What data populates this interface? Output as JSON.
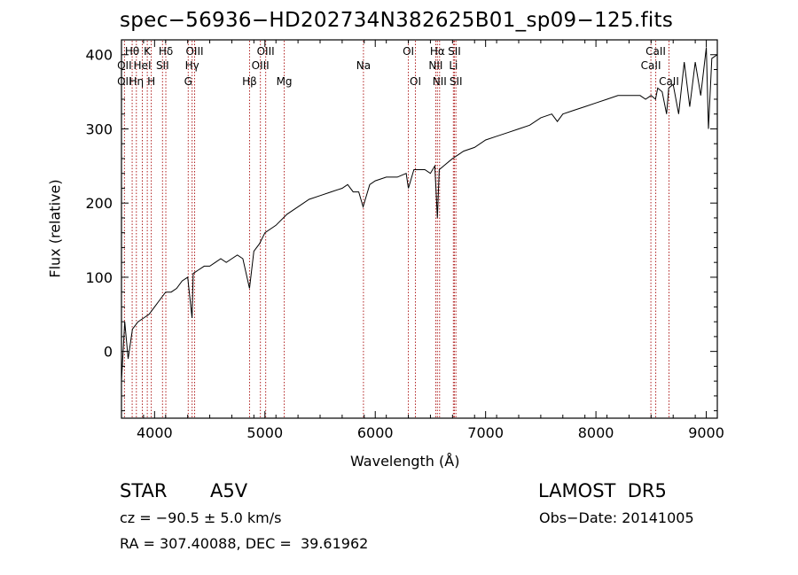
{
  "chart_data": {
    "type": "line",
    "title": "spec−56936−HD202734N382625B01_sp09−125.fits",
    "xlabel": "Wavelength (Å)",
    "ylabel": "Flux (relative)",
    "xlim": [
      3700,
      9100
    ],
    "ylim": [
      -90,
      420
    ],
    "xticks": [
      4000,
      5000,
      6000,
      7000,
      8000,
      9000
    ],
    "yticks": [
      0,
      100,
      200,
      300,
      400
    ],
    "series": [
      {
        "x": [
          3700,
          3730,
          3760,
          3800,
          3850,
          3900,
          3950,
          4000,
          4050,
          4100,
          4150,
          4200,
          4250,
          4300,
          4340,
          4350,
          4400,
          4450,
          4500,
          4550,
          4600,
          4650,
          4700,
          4750,
          4800,
          4860,
          4900,
          4950,
          5000,
          5100,
          5200,
          5300,
          5400,
          5500,
          5600,
          5700,
          5750,
          5800,
          5850,
          5890,
          5950,
          6000,
          6100,
          6200,
          6280,
          6300,
          6350,
          6400,
          6450,
          6500,
          6540,
          6563,
          6580,
          6620,
          6700,
          6750,
          6800,
          6900,
          7000,
          7100,
          7200,
          7300,
          7400,
          7500,
          7600,
          7650,
          7700,
          7800,
          7900,
          8000,
          8100,
          8200,
          8300,
          8400,
          8450,
          8500,
          8540,
          8560,
          8600,
          8640,
          8660,
          8700,
          8750,
          8800,
          8850,
          8900,
          8950,
          9000,
          9020,
          9050,
          9100
        ],
        "y": [
          -40,
          40,
          -10,
          30,
          40,
          45,
          50,
          60,
          70,
          80,
          80,
          85,
          95,
          100,
          45,
          105,
          110,
          115,
          115,
          120,
          125,
          120,
          125,
          130,
          125,
          85,
          135,
          145,
          160,
          170,
          185,
          195,
          205,
          210,
          215,
          220,
          225,
          215,
          215,
          195,
          225,
          230,
          235,
          235,
          240,
          220,
          245,
          245,
          245,
          240,
          250,
          180,
          245,
          250,
          260,
          265,
          270,
          275,
          285,
          290,
          295,
          300,
          305,
          315,
          320,
          310,
          320,
          325,
          330,
          335,
          340,
          345,
          345,
          345,
          340,
          345,
          340,
          355,
          350,
          320,
          355,
          360,
          320,
          390,
          330,
          390,
          345,
          410,
          300,
          395,
          400
        ]
      }
    ],
    "line_markers": [
      {
        "name": "Hθ",
        "wavelength": 3797,
        "row": 1
      },
      {
        "name": "K",
        "wavelength": 3934,
        "row": 1
      },
      {
        "name": "Hδ",
        "wavelength": 4102,
        "row": 1
      },
      {
        "name": "OIII",
        "wavelength": 4363,
        "row": 1
      },
      {
        "name": "OIII",
        "wavelength": 5007,
        "row": 1
      },
      {
        "name": "OI",
        "wavelength": 6300,
        "row": 1
      },
      {
        "name": "Hα",
        "wavelength": 6563,
        "row": 1
      },
      {
        "name": "SII",
        "wavelength": 6717,
        "row": 1
      },
      {
        "name": "CaII",
        "wavelength": 8542,
        "row": 1
      },
      {
        "name": "OII",
        "wavelength": 3727,
        "row": 2
      },
      {
        "name": "HeI",
        "wavelength": 3889,
        "row": 2
      },
      {
        "name": "SII",
        "wavelength": 4072,
        "row": 2
      },
      {
        "name": "Hγ",
        "wavelength": 4340,
        "row": 2
      },
      {
        "name": "OIII",
        "wavelength": 4959,
        "row": 2
      },
      {
        "name": "Na",
        "wavelength": 5893,
        "row": 2
      },
      {
        "name": "NII",
        "wavelength": 6548,
        "row": 2
      },
      {
        "name": "Li",
        "wavelength": 6708,
        "row": 2
      },
      {
        "name": "CaII",
        "wavelength": 8498,
        "row": 2
      },
      {
        "name": "OII",
        "wavelength": 3727,
        "row": 3
      },
      {
        "name": "Hη",
        "wavelength": 3835,
        "row": 3
      },
      {
        "name": "H",
        "wavelength": 3970,
        "row": 3
      },
      {
        "name": "G",
        "wavelength": 4305,
        "row": 3
      },
      {
        "name": "Hβ",
        "wavelength": 4861,
        "row": 3
      },
      {
        "name": "Mg",
        "wavelength": 5175,
        "row": 3
      },
      {
        "name": "OI",
        "wavelength": 6364,
        "row": 3
      },
      {
        "name": "NII",
        "wavelength": 6583,
        "row": 3
      },
      {
        "name": "SII",
        "wavelength": 6731,
        "row": 3
      },
      {
        "name": "CaII",
        "wavelength": 8662,
        "row": 3
      }
    ],
    "grid": false,
    "line_color": "#000000",
    "marker_color": "#b02020"
  },
  "info": {
    "object_class": "STAR",
    "subclass": "A5V",
    "survey": "LAMOST  DR5",
    "redshift": "cz = −90.5 ± 5.0 km/s",
    "obs_date": "Obs−Date: 20141005",
    "coords": "RA = 307.40088, DEC =  39.61962"
  }
}
